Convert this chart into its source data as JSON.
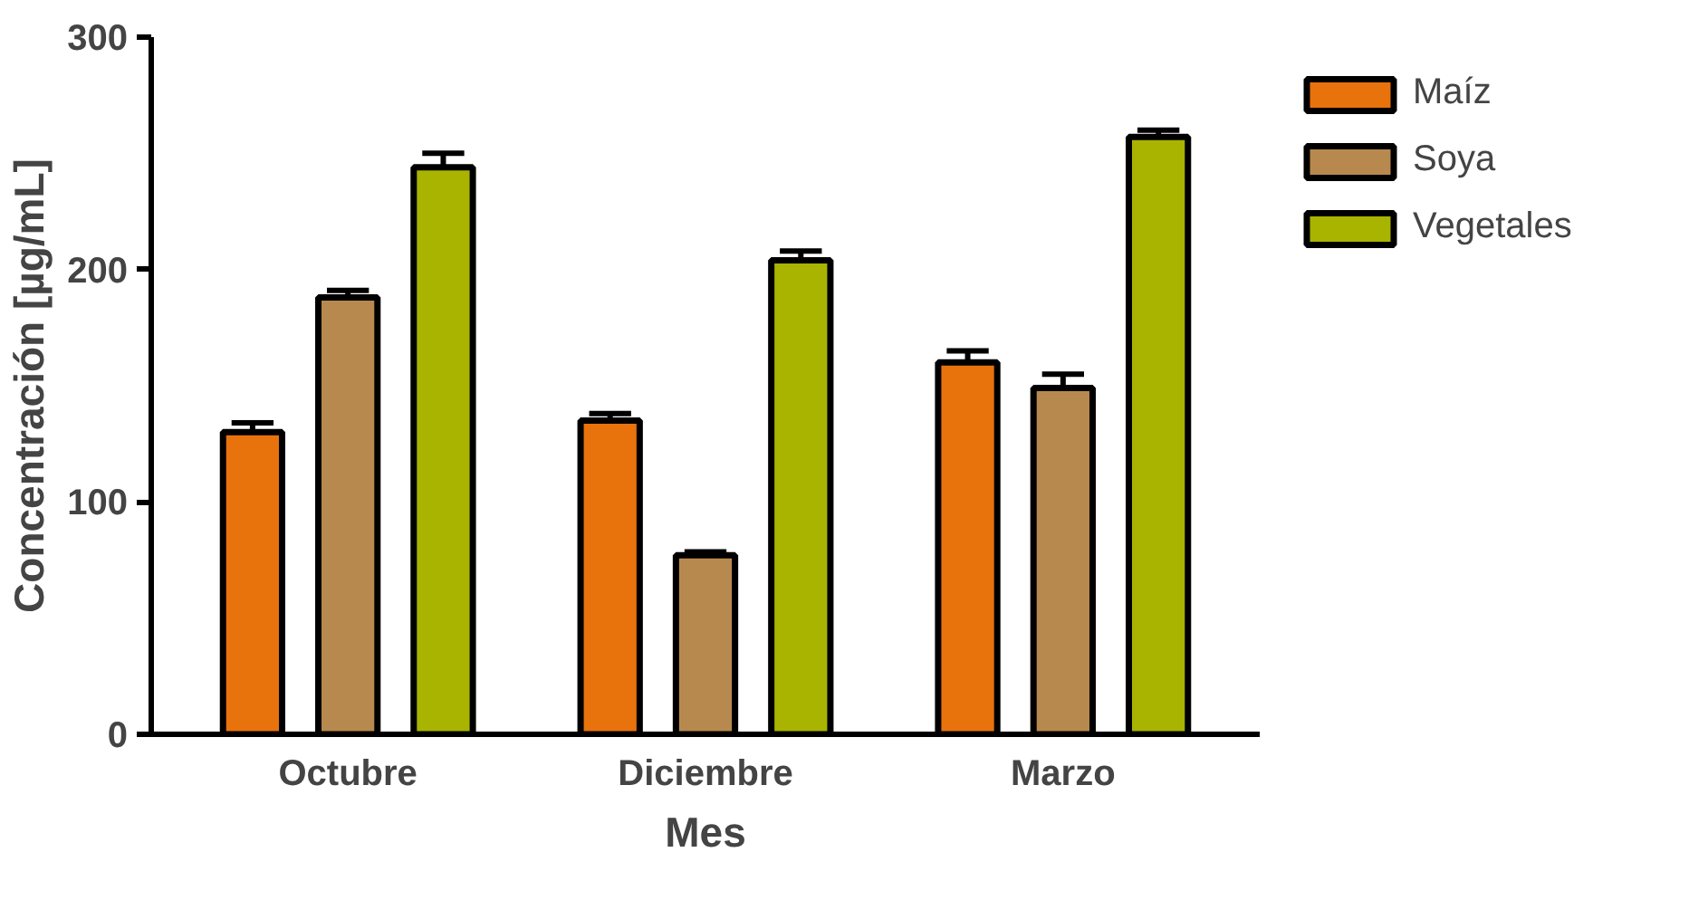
{
  "chart_data": {
    "type": "bar",
    "xlabel": "Mes",
    "ylabel": "Concentración [µg/mL]",
    "categories": [
      "Octubre",
      "Diciembre",
      "Marzo"
    ],
    "series": [
      {
        "name": "Maíz",
        "color": "#e8720c",
        "values": [
          130,
          135,
          160
        ],
        "errors": [
          4,
          3,
          5
        ]
      },
      {
        "name": "Soya",
        "color": "#b8894e",
        "values": [
          188,
          77,
          149
        ],
        "errors": [
          3,
          1.5,
          6
        ]
      },
      {
        "name": "Vegetales",
        "color": "#a8b400",
        "values": [
          244,
          204,
          257
        ],
        "errors": [
          6,
          4,
          3
        ]
      }
    ],
    "ylim": [
      0,
      300
    ],
    "yticks": [
      0,
      100,
      200,
      300
    ],
    "grid": false,
    "legend": "top right"
  }
}
